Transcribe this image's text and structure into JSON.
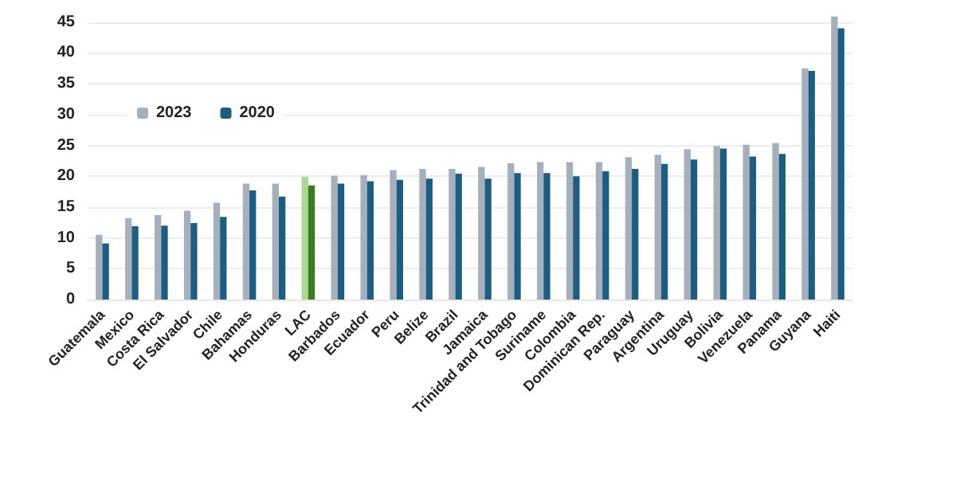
{
  "chart_data": {
    "type": "bar",
    "categories": [
      "Guatemala",
      "Mexico",
      "Costa Rica",
      "El Salvador",
      "Chile",
      "Bahamas",
      "Honduras",
      "LAC",
      "Barbados",
      "Ecuador",
      "Peru",
      "Belize",
      "Brazil",
      "Jamaica",
      "Trinidad and Tobago",
      "Suriname",
      "Colombia",
      "Dominican Rep.",
      "Paraguay",
      "Argentina",
      "Uruguay",
      "Bolivia",
      "Venezuela",
      "Panama",
      "Guyana",
      "Haiti"
    ],
    "series": [
      {
        "name": "2023",
        "color": "#a5b0bc",
        "colors": [
          "#a5b0bc",
          "#a5b0bc",
          "#a5b0bc",
          "#a5b0bc",
          "#a5b0bc",
          "#a5b0bc",
          "#a5b0bc",
          "#a9d890",
          "#a5b0bc",
          "#a5b0bc",
          "#a5b0bc",
          "#a5b0bc",
          "#a5b0bc",
          "#a5b0bc",
          "#a5b0bc",
          "#a5b0bc",
          "#a5b0bc",
          "#a5b0bc",
          "#a5b0bc",
          "#a5b0bc",
          "#a5b0bc",
          "#a5b0bc",
          "#a5b0bc",
          "#a5b0bc",
          "#a5b0bc",
          "#a5b0bc"
        ],
        "values": [
          10.5,
          13.2,
          13.7,
          14.4,
          15.7,
          18.8,
          18.8,
          19.9,
          20.1,
          20.2,
          21.0,
          21.2,
          21.2,
          21.5,
          22.1,
          22.3,
          22.3,
          22.3,
          23.1,
          23.5,
          24.4,
          24.9,
          25.1,
          25.4,
          37.5,
          45.9
        ]
      },
      {
        "name": "2020",
        "color": "#1b5e82",
        "colors": [
          "#1b5e82",
          "#1b5e82",
          "#1b5e82",
          "#1b5e82",
          "#1b5e82",
          "#1b5e82",
          "#1b5e82",
          "#3b7a22",
          "#1b5e82",
          "#1b5e82",
          "#1b5e82",
          "#1b5e82",
          "#1b5e82",
          "#1b5e82",
          "#1b5e82",
          "#1b5e82",
          "#1b5e82",
          "#1b5e82",
          "#1b5e82",
          "#1b5e82",
          "#1b5e82",
          "#1b5e82",
          "#1b5e82",
          "#1b5e82",
          "#1b5e82",
          "#1b5e82"
        ],
        "values": [
          9.1,
          11.9,
          12.0,
          12.4,
          13.4,
          17.7,
          16.7,
          18.5,
          18.8,
          19.2,
          19.4,
          19.6,
          20.4,
          19.6,
          20.5,
          20.5,
          20.0,
          20.8,
          21.2,
          22.0,
          22.7,
          24.5,
          23.2,
          23.6,
          37.1,
          44.0
        ]
      }
    ],
    "ylim": [
      0,
      46
    ],
    "yticks": [
      0,
      5,
      10,
      15,
      20,
      25,
      30,
      35,
      40,
      45
    ],
    "grid": "y",
    "legend": "top left"
  }
}
